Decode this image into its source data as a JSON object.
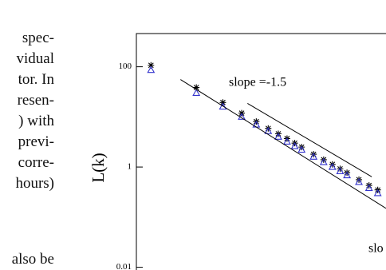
{
  "text_fragments": [
    "spec-",
    "vidual",
    "tor. In",
    "resen-",
    ") with",
    "previ-",
    "corre-",
    "hours)",
    "also be"
  ],
  "chart_data": {
    "type": "scatter",
    "y_label": "L(k)",
    "log_x": true,
    "log_y": true,
    "xlim": [
      0.8,
      36.3
    ],
    "ylim": [
      0.0095,
      460
    ],
    "yticks": [
      100,
      1,
      0.01
    ],
    "annotations": [
      "slope =-1.5",
      "slo"
    ],
    "series": [
      {
        "marker": "star",
        "color": "#000000",
        "x": [
          1,
          2,
          3,
          4,
          5,
          6,
          7,
          8,
          9,
          10,
          12,
          14,
          16,
          18,
          20,
          24,
          28,
          32
        ],
        "values": [
          107,
          38.6,
          19.4,
          11.9,
          8.1,
          5.9,
          4.6,
          3.7,
          3.0,
          2.5,
          1.8,
          1.4,
          1.13,
          0.92,
          0.77,
          0.56,
          0.43,
          0.35
        ]
      },
      {
        "marker": "triangle",
        "color": "#3333cc",
        "x": [
          1,
          2,
          3,
          4,
          5,
          6,
          7,
          8,
          9,
          10,
          12,
          14,
          16,
          18,
          20,
          24,
          28,
          32
        ],
        "values": [
          86,
          30,
          16,
          10,
          7,
          5.2,
          4.0,
          3.2,
          2.6,
          2.2,
          1.6,
          1.25,
          1.0,
          0.82,
          0.68,
          0.5,
          0.38,
          0.3
        ]
      },
      {
        "marker": "line",
        "color": "#000000",
        "x": [
          1.57,
          36.3
        ],
        "values": [
          55.7,
          0.15
        ]
      },
      {
        "marker": "line",
        "color": "#000000",
        "x": [
          4.37,
          29.2
        ],
        "values": [
          18.6,
          0.64
        ]
      }
    ]
  }
}
